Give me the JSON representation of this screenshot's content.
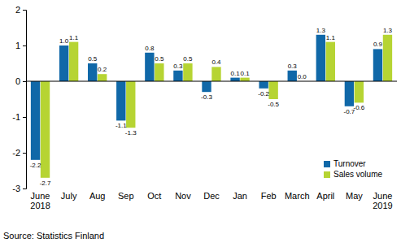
{
  "chart_data": {
    "type": "bar",
    "categories": [
      "June 2018",
      "July",
      "Aug",
      "Sep",
      "Oct",
      "Nov",
      "Dec",
      "Jan",
      "Feb",
      "March",
      "April",
      "May",
      "June 2019"
    ],
    "series": [
      {
        "name": "Turnover",
        "color": "#1068a8",
        "values": [
          -2.2,
          1.0,
          0.5,
          -1.1,
          0.8,
          0.3,
          -0.3,
          0.1,
          -0.2,
          0.3,
          1.3,
          -0.7,
          0.9
        ],
        "value_labels": [
          "-2.2",
          "1.0",
          "0.5",
          "-1.1",
          "0.8",
          "0.3",
          "-0.3",
          "0.1",
          "-0.2",
          "0.3",
          "1.3",
          "-0.7",
          "0.9"
        ]
      },
      {
        "name": "Sales volume",
        "color": "#b6d433",
        "values": [
          -2.7,
          1.1,
          0.2,
          -1.3,
          0.5,
          0.5,
          0.4,
          0.1,
          -0.5,
          0.0,
          1.1,
          -0.6,
          1.3
        ],
        "value_labels": [
          "-2.7",
          "1.1",
          "0.2",
          "-1.3",
          "0.5",
          "0.5",
          "0.4",
          "0.1",
          "-0.5",
          "0.0",
          "1.1",
          "-0.6",
          "1.3"
        ]
      }
    ],
    "ylim": [
      -3,
      2
    ],
    "yticks": [
      -3,
      -2,
      -1,
      0,
      1,
      2
    ],
    "grid": false,
    "legend": "lower right",
    "data_labels": true,
    "annotations": [
      "Source: Statistics Finland"
    ]
  }
}
